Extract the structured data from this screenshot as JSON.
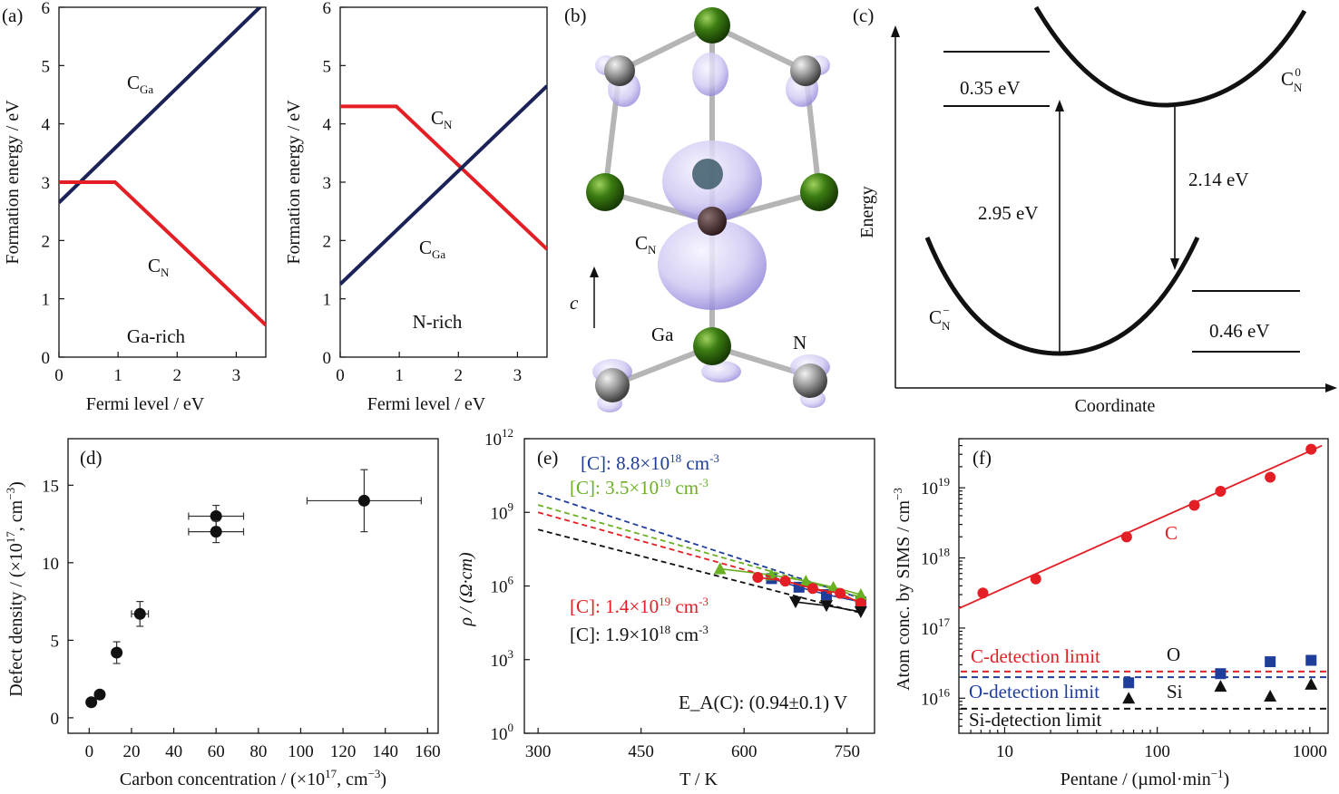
{
  "colors": {
    "navy": "#1a2258",
    "red": "#e31e24",
    "blue": "#1f3e9c",
    "green": "#6ab023",
    "black": "#111111",
    "purple": "#8a7fd6"
  },
  "chart_data": [
    {
      "panel": "(a)",
      "type": "line",
      "legend": "none",
      "xlabel": "Fermi level / eV",
      "ylabel": "Formation energy / eV",
      "xlim": [
        0,
        3.5
      ],
      "ylim": [
        0,
        6
      ],
      "xticks": [
        "0",
        "1",
        "2",
        "3"
      ],
      "yticks": [
        "0",
        "1",
        "2",
        "3",
        "4",
        "5",
        "6"
      ],
      "annotation": "Ga-rich",
      "series": [
        {
          "name": "C",
          "sub": "Ga",
          "color": "navy",
          "x": [
            0,
            3.5
          ],
          "y": [
            2.65,
            6.1
          ]
        },
        {
          "name": "C",
          "sub": "N",
          "color": "red",
          "x": [
            0,
            0.95,
            3.5
          ],
          "y": [
            3.0,
            3.0,
            0.55
          ]
        }
      ]
    },
    {
      "panel": "",
      "type": "line",
      "legend": "none",
      "xlabel": "Fermi level / eV",
      "ylabel": "Formation energy / eV",
      "xlim": [
        0,
        3.5
      ],
      "ylim": [
        0,
        6
      ],
      "xticks": [
        "0",
        "1",
        "2",
        "3"
      ],
      "yticks": [
        "0",
        "1",
        "2",
        "3",
        "4",
        "5",
        "6"
      ],
      "annotation": "N-rich",
      "series": [
        {
          "name": "C",
          "sub": "N",
          "color": "red",
          "x": [
            0,
            0.95,
            3.5
          ],
          "y": [
            4.3,
            4.3,
            1.85
          ]
        },
        {
          "name": "C",
          "sub": "Ga",
          "color": "navy",
          "x": [
            0,
            3.5
          ],
          "y": [
            1.25,
            4.65
          ]
        }
      ]
    },
    {
      "panel": "(d)",
      "type": "scatter",
      "xlabel": "Carbon concentration / (×10",
      "xlabel_sup": "17",
      "xlabel_end": ", cm",
      "xlabel_sup2": "−3",
      "xlabel_close": ")",
      "ylabel": "Defect density / (×10",
      "ylabel_sup": "17",
      "ylabel_end": ", cm",
      "ylabel_sup2": "−3",
      "ylabel_close": ")",
      "xlim": [
        -10,
        165
      ],
      "ylim": [
        -1,
        18
      ],
      "xticks": [
        0,
        20,
        40,
        60,
        80,
        100,
        120,
        140,
        160
      ],
      "yticks": [
        0,
        5,
        10,
        15
      ],
      "points": [
        {
          "x": 1,
          "y": 1.0,
          "xerr": 0,
          "yerr": 0
        },
        {
          "x": 5,
          "y": 1.5,
          "xerr": 0,
          "yerr": 0
        },
        {
          "x": 13,
          "y": 4.2,
          "xerr": 2,
          "yerr": 0.7
        },
        {
          "x": 24,
          "y": 6.7,
          "xerr": 4,
          "yerr": 0.8
        },
        {
          "x": 60,
          "y": 13.0,
          "xerr": 13,
          "yerr": 0.7
        },
        {
          "x": 60,
          "y": 12.0,
          "xerr": 13,
          "yerr": 0.7
        },
        {
          "x": 130,
          "y": 14.0,
          "xerr": 27,
          "yerr": 2
        }
      ]
    },
    {
      "panel": "(e)",
      "type": "scatter",
      "yscale": "log",
      "xlabel": "T / K",
      "ylabel": "ρ / (Ω·cm)",
      "xlim": [
        280,
        790
      ],
      "ylim_exp": [
        0,
        12
      ],
      "xticks": [
        300,
        450,
        600,
        750
      ],
      "yticks_exp": [
        0,
        3,
        6,
        9,
        12
      ],
      "annotation": "E_A(C): (0.94±0.1) V",
      "series": [
        {
          "name": "[C]: 8.8×10^18 cm^-3",
          "color": "blue",
          "marker": "square",
          "fit_at_300": 9.8,
          "fit_at_770": 5.5,
          "x": [
            640,
            680,
            720,
            770
          ],
          "y_exp": [
            6.3,
            5.95,
            5.65,
            5.35
          ]
        },
        {
          "name": "[C]: 3.5×10^19 cm^-3",
          "color": "green",
          "marker": "triangle-up",
          "fit_at_300": 9.3,
          "fit_at_770": 5.55,
          "x": [
            565,
            640,
            690,
            730,
            770
          ],
          "y_exp": [
            6.7,
            6.45,
            6.2,
            5.95,
            5.65
          ]
        },
        {
          "name": "[C]: 1.4×10^19 cm^-3",
          "color": "red",
          "marker": "circle",
          "fit_at_300": 9.0,
          "fit_at_770": 5.35,
          "x": [
            620,
            660,
            700,
            740,
            770
          ],
          "y_exp": [
            6.35,
            6.2,
            5.9,
            5.7,
            5.3
          ]
        },
        {
          "name": "[C]: 1.9×10^18 cm^-3",
          "color": "black",
          "marker": "triangle-down",
          "fit_at_300": 8.3,
          "fit_at_770": 4.9,
          "x": [
            675,
            720,
            770
          ],
          "y_exp": [
            5.35,
            5.2,
            4.95
          ]
        }
      ]
    },
    {
      "panel": "(f)",
      "type": "scatter",
      "xscale": "log",
      "yscale": "log",
      "xlabel": "Pentane / (µmol·min",
      "xlabel_sup": "−1",
      "xlabel_close": ")",
      "ylabel": "Atom conc. by SIMS / cm",
      "ylabel_sup": "−3",
      "xlim_exp": [
        0.7,
        3.12
      ],
      "ylim_exp": [
        15.5,
        19.7
      ],
      "xticks": [
        "10",
        "100",
        "1000"
      ],
      "yticks_exp": [
        16,
        17,
        18,
        19
      ],
      "series": [
        {
          "name": "C",
          "color": "red",
          "marker": "circle",
          "x": [
            7.2,
            16,
            63,
            175,
            260,
            550,
            1020
          ],
          "y_exp": [
            17.5,
            17.7,
            18.3,
            18.75,
            18.95,
            19.15,
            19.55
          ],
          "fit": [
            [
              5,
              17.28
            ],
            [
              1200,
              19.6
            ]
          ]
        },
        {
          "name": "O",
          "color": "blue",
          "marker": "square",
          "x": [
            65,
            260,
            550,
            1020
          ],
          "y_exp": [
            16.22,
            16.35,
            16.52,
            16.54
          ]
        },
        {
          "name": "Si",
          "color": "black",
          "marker": "triangle-up",
          "x": [
            65,
            260,
            550,
            1020
          ],
          "y_exp": [
            16.0,
            16.17,
            16.03,
            16.2
          ]
        }
      ],
      "limits": [
        {
          "label": "C-detection limit",
          "color": "red",
          "y_exp": 16.38
        },
        {
          "label": "O-detection limit",
          "color": "blue",
          "y_exp": 16.3
        },
        {
          "label": "Si-detection limit",
          "color": "black",
          "y_exp": 15.85
        }
      ]
    }
  ],
  "panel_b": {
    "panel": "(b)",
    "axis": "c",
    "ga": "Ga",
    "n": "N",
    "cn": "C",
    "cn_sub": "N"
  },
  "panel_c": {
    "panel": "(c)",
    "ylabel": "Energy",
    "xlabel": "Coordinate",
    "upper_state": "C",
    "upper_sub": "N",
    "upper_sup": "0",
    "lower_state": "C",
    "lower_sub": "N",
    "lower_sup": "−",
    "absorption": "2.95 eV",
    "emission": "2.14 eV",
    "relax_upper": "0.35 eV",
    "relax_lower": "0.46 eV"
  }
}
